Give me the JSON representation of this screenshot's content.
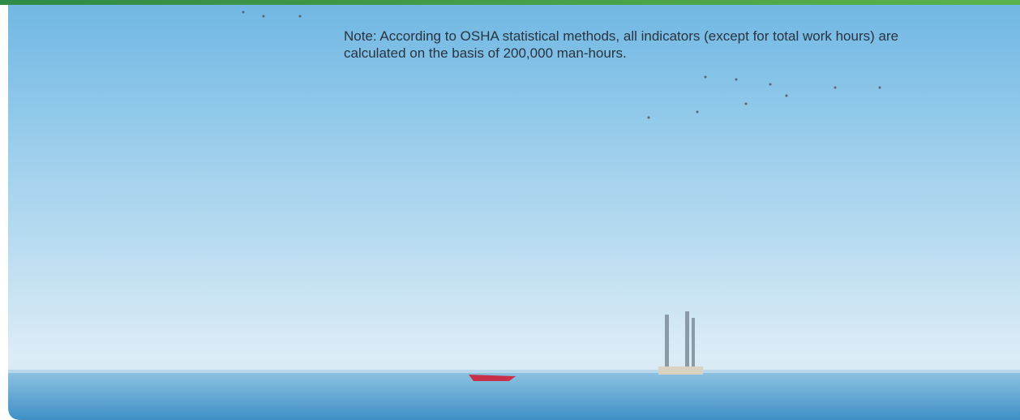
{
  "note": "Note: According to OSHA statistical methods, all indicators (except for total work hours) are calculated on the basis of 200,000 man-hours."
}
